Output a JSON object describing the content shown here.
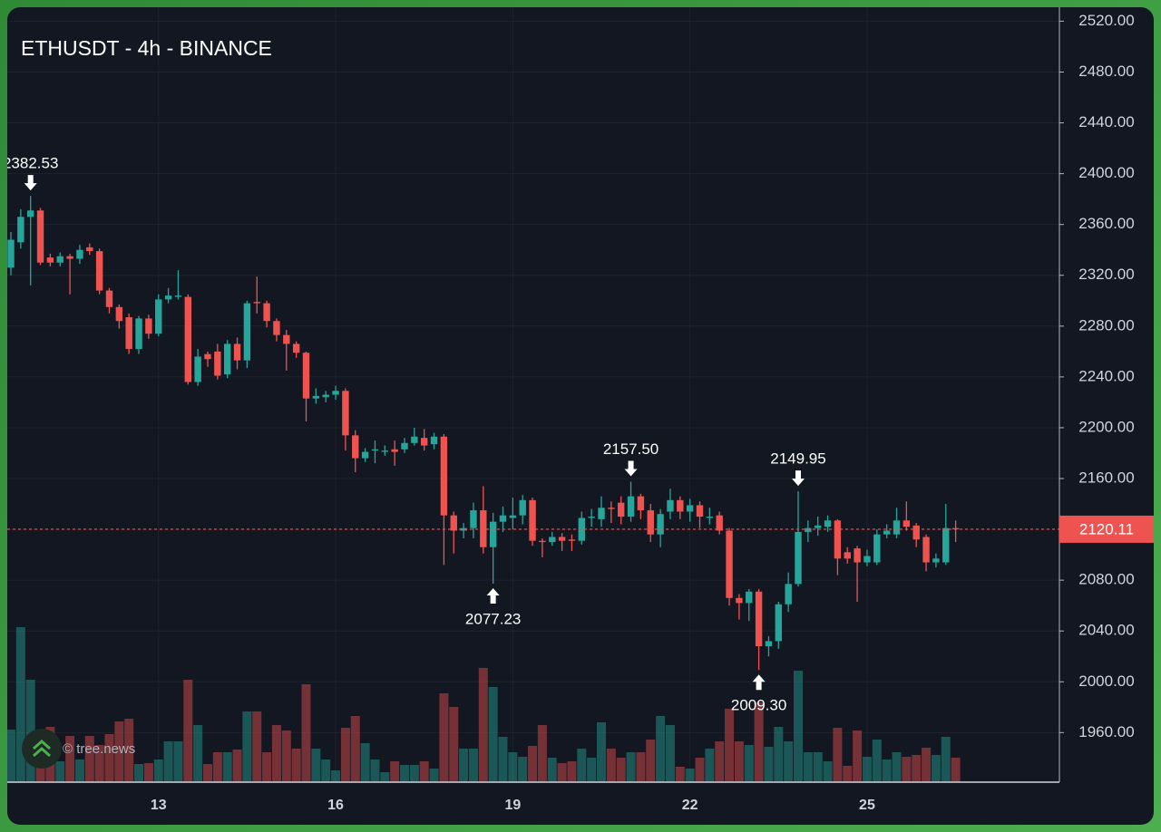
{
  "chart_data": {
    "type": "candlestick",
    "title": "ETHUSDT - 4h - BINANCE",
    "watermark": "© tree.news",
    "categories": [
      null,
      null,
      null,
      null,
      null,
      null,
      null,
      null,
      null,
      null,
      null,
      null,
      null,
      null,
      null,
      "13",
      null,
      null,
      null,
      null,
      null,
      null,
      null,
      null,
      null,
      null,
      null,
      null,
      null,
      null,
      null,
      null,
      null,
      "16",
      null,
      null,
      null,
      null,
      null,
      null,
      null,
      null,
      null,
      null,
      null,
      null,
      null,
      null,
      null,
      null,
      null,
      "19",
      null,
      null,
      null,
      null,
      null,
      null,
      null,
      null,
      null,
      null,
      null,
      null,
      null,
      null,
      null,
      null,
      null,
      "22",
      null,
      null,
      null,
      null,
      null,
      null,
      null,
      null,
      null,
      null,
      null,
      null,
      null,
      null,
      null,
      null,
      null,
      "25",
      null,
      null,
      null,
      null,
      null,
      null,
      null,
      null,
      null
    ],
    "open": [
      2326,
      2346,
      2366,
      2371,
      2334,
      2330,
      2335,
      2333,
      2342,
      2339,
      2308,
      2295,
      2287,
      2262,
      2286,
      2274,
      2301,
      2303,
      2303,
      2236,
      2258,
      2260,
      2242,
      2266,
      2253,
      2299,
      2298,
      2284,
      2273,
      2266,
      2259,
      2223,
      2224,
      2226,
      2229,
      2194,
      2176,
      2182,
      2181,
      2183,
      2183,
      2188,
      2192,
      2187,
      2193,
      2131,
      2119,
      2121,
      2135,
      2106,
      2126,
      2129,
      2131,
      2143,
      2111,
      2110,
      2114,
      2112,
      2111,
      2129,
      2128,
      2137,
      2141,
      2130,
      2146,
      2135,
      2116,
      2134,
      2143,
      2134,
      2139,
      2129,
      2131,
      2119,
      2066,
      2062,
      2071,
      2028,
      2032,
      2061,
      2077,
      2118,
      2121,
      2122,
      2127,
      2102,
      2105,
      2094,
      2094,
      2116,
      2116,
      2127,
      2123,
      2114,
      2094,
      2094,
      2121
    ],
    "high": [
      2354,
      2372,
      2382.53,
      2373,
      2337,
      2338,
      2337,
      2344,
      2345,
      2341,
      2310,
      2297,
      2290,
      2288,
      2289,
      2305,
      2310,
      2324,
      2305,
      2262,
      2260,
      2266,
      2269,
      2271,
      2300,
      2319,
      2300,
      2286,
      2277,
      2268,
      2260,
      2231,
      2229,
      2233,
      2231,
      2198,
      2184,
      2190,
      2186,
      2190,
      2192,
      2200,
      2199,
      2196,
      2195,
      2134,
      2125,
      2141,
      2154,
      2133,
      2138,
      2145,
      2147,
      2145,
      2113,
      2118,
      2117,
      2116,
      2134,
      2136,
      2146,
      2142,
      2146,
      2157.5,
      2148,
      2140,
      2136,
      2152,
      2146,
      2144,
      2142,
      2137,
      2134,
      2121,
      2069,
      2073,
      2073,
      2036,
      2063,
      2086,
      2149.95,
      2127,
      2130,
      2131,
      2128,
      2106,
      2107,
      2104,
      2120,
      2124,
      2137,
      2142,
      2125,
      2116,
      2101,
      2140,
      2127
    ],
    "low": [
      2320,
      2341,
      2312,
      2328,
      2327,
      2327,
      2305,
      2329,
      2336,
      2305,
      2290,
      2278,
      2258,
      2258,
      2270,
      2272,
      2298,
      2301,
      2234,
      2233,
      2248,
      2238,
      2239,
      2246,
      2247,
      2290,
      2279,
      2268,
      2245,
      2255,
      2205,
      2219,
      2220,
      2222,
      2182,
      2165,
      2173,
      2172,
      2178,
      2170,
      2180,
      2186,
      2182,
      2183,
      2092,
      2101,
      2113,
      2113,
      2101,
      2077.23,
      2118,
      2120,
      2124,
      2107,
      2098,
      2107,
      2103,
      2103,
      2108,
      2122,
      2122,
      2125,
      2124,
      2126,
      2128,
      2110,
      2106,
      2128,
      2128,
      2126,
      2121,
      2124,
      2116,
      2060,
      2049,
      2048,
      2009.3,
      2020,
      2026,
      2055,
      2075,
      2110,
      2115,
      2118,
      2084,
      2093,
      2063,
      2091,
      2092,
      2113,
      2113,
      2119,
      2106,
      2087,
      2090,
      2092,
      2110
    ],
    "close": [
      2348,
      2366,
      2371,
      2330,
      2330,
      2335,
      2333,
      2340,
      2339,
      2308,
      2295,
      2284,
      2262,
      2286,
      2274,
      2301,
      2304,
      2304,
      2236,
      2256,
      2254,
      2241,
      2266,
      2253,
      2298,
      2298,
      2284,
      2273,
      2266,
      2259,
      2223,
      2225,
      2226,
      2229,
      2194,
      2176,
      2181,
      2183,
      2182,
      2181,
      2188,
      2193,
      2186,
      2193,
      2131,
      2119,
      2121,
      2135,
      2106,
      2126,
      2131,
      2131,
      2143,
      2111,
      2110,
      2114,
      2111,
      2111,
      2129,
      2130,
      2137,
      2136,
      2130,
      2146,
      2135,
      2116,
      2132,
      2143,
      2134,
      2139,
      2130,
      2130,
      2119,
      2066,
      2062,
      2071,
      2028,
      2032,
      2061,
      2077,
      2118,
      2121,
      2123,
      2127,
      2097,
      2097,
      2094,
      2099,
      2116,
      2119,
      2127,
      2122,
      2112,
      2094,
      2097,
      2121,
      2120.11
    ],
    "volume": [
      58,
      171,
      113,
      30,
      61,
      23,
      51,
      25,
      51,
      41,
      53,
      67,
      70,
      20,
      21,
      25,
      45,
      45,
      113,
      63,
      20,
      33,
      33,
      36,
      78,
      78,
      33,
      63,
      57,
      37,
      108,
      37,
      25,
      13,
      60,
      73,
      43,
      25,
      11,
      23,
      19,
      19,
      23,
      15,
      98,
      83,
      37,
      37,
      126,
      105,
      50,
      33,
      28,
      40,
      63,
      27,
      21,
      23,
      37,
      27,
      66,
      37,
      27,
      33,
      33,
      47,
      73,
      63,
      17,
      15,
      27,
      37,
      45,
      81,
      45,
      41,
      88,
      39,
      61,
      45,
      123,
      33,
      33,
      23,
      60,
      18,
      57,
      28,
      47,
      25,
      33,
      28,
      30,
      38,
      30,
      50,
      27
    ],
    "high_labels": [
      null,
      null,
      "2382.53",
      null,
      null,
      null,
      null,
      null,
      null,
      null,
      null,
      null,
      null,
      null,
      null,
      null,
      null,
      null,
      null,
      null,
      null,
      null,
      null,
      null,
      null,
      null,
      null,
      null,
      null,
      null,
      null,
      null,
      null,
      null,
      null,
      null,
      null,
      null,
      null,
      null,
      null,
      null,
      null,
      null,
      null,
      null,
      null,
      null,
      null,
      null,
      null,
      null,
      null,
      null,
      null,
      null,
      null,
      null,
      null,
      null,
      null,
      null,
      null,
      "2157.50",
      null,
      null,
      null,
      null,
      null,
      null,
      null,
      null,
      null,
      null,
      null,
      null,
      null,
      null,
      null,
      null,
      "2149.95",
      null,
      null,
      null,
      null,
      null,
      null,
      null,
      null,
      null,
      null,
      null,
      null,
      null,
      null,
      null
    ],
    "low_labels": [
      null,
      null,
      null,
      null,
      null,
      null,
      null,
      null,
      null,
      null,
      null,
      null,
      null,
      null,
      null,
      null,
      null,
      null,
      null,
      null,
      null,
      null,
      null,
      null,
      null,
      null,
      null,
      null,
      null,
      null,
      null,
      null,
      null,
      null,
      null,
      null,
      null,
      null,
      null,
      null,
      null,
      null,
      null,
      null,
      null,
      null,
      null,
      null,
      null,
      "2077.23",
      null,
      null,
      null,
      null,
      null,
      null,
      null,
      null,
      null,
      null,
      null,
      null,
      null,
      null,
      null,
      null,
      null,
      null,
      null,
      null,
      null,
      null,
      null,
      null,
      null,
      null,
      "2009.30",
      null,
      null,
      null,
      null,
      null,
      null,
      null,
      null,
      null,
      null,
      null,
      null,
      null,
      null,
      null,
      null,
      null,
      null,
      null
    ],
    "ylim": [
      1921,
      2531
    ],
    "yticks": [
      {
        "value": 1960,
        "label": "1960.00"
      },
      {
        "value": 2000,
        "label": "2000.00"
      },
      {
        "value": 2040,
        "label": "2040.00"
      },
      {
        "value": 2080,
        "label": "2080.00"
      },
      {
        "value": 2120,
        "label": "2120.00"
      },
      {
        "value": 2160,
        "label": "2160.00"
      },
      {
        "value": 2200,
        "label": "2200.00"
      },
      {
        "value": 2240,
        "label": "2240.00"
      },
      {
        "value": 2280,
        "label": "2280.00"
      },
      {
        "value": 2320,
        "label": "2320.00"
      },
      {
        "value": 2360,
        "label": "2360.00"
      },
      {
        "value": 2400,
        "label": "2400.00"
      },
      {
        "value": 2440,
        "label": "2440.00"
      },
      {
        "value": 2480,
        "label": "2480.00"
      },
      {
        "value": 2520,
        "label": "2520.00"
      }
    ],
    "grid": true,
    "up_color": "#26a69a",
    "down_color": "#ef5350",
    "last_price_line": true
  }
}
